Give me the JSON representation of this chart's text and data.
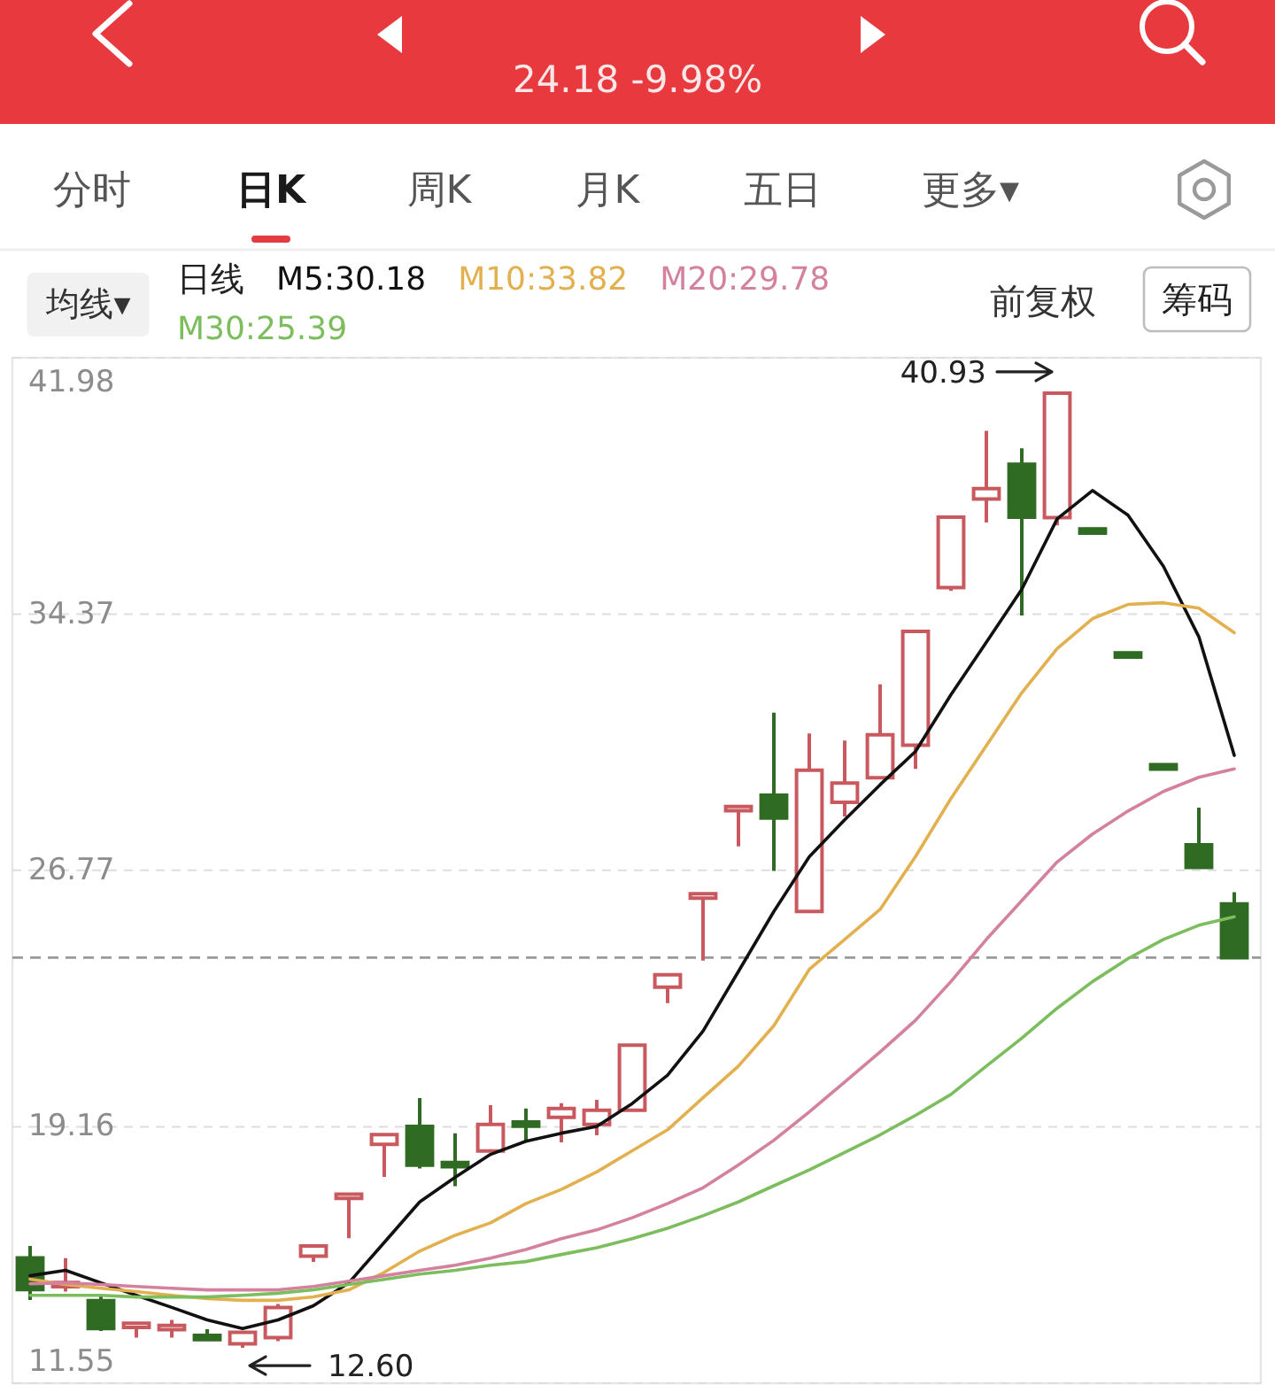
{
  "chart_data": {
    "type": "candlestick",
    "subtitle": "24.18 -9.98%",
    "legend_title": "日线",
    "legend": "top left",
    "grid": "y",
    "categories": [
      null,
      null,
      null,
      null,
      null,
      null,
      null,
      null,
      null,
      null,
      null,
      null,
      null,
      null,
      null,
      null,
      null,
      null,
      null,
      null,
      null,
      null,
      null,
      null,
      null,
      null,
      null,
      null,
      null,
      null,
      null,
      null,
      null,
      null,
      null
    ],
    "ohlc": [
      [
        15.27,
        15.62,
        14.02,
        14.33
      ],
      [
        14.45,
        15.26,
        14.27,
        14.5
      ],
      [
        14.0,
        14.16,
        13.1,
        13.17
      ],
      [
        13.22,
        13.32,
        12.9,
        13.32
      ],
      [
        13.18,
        13.43,
        12.9,
        13.22
      ],
      [
        12.92,
        13.15,
        12.89,
        12.89
      ],
      [
        12.72,
        13.1,
        12.6,
        13.06
      ],
      [
        12.9,
        13.9,
        12.8,
        13.8
      ],
      [
        15.32,
        15.62,
        15.15,
        15.62
      ],
      [
        17.05,
        17.15,
        15.85,
        17.15
      ],
      [
        18.64,
        18.93,
        17.67,
        18.93
      ],
      [
        19.17,
        20.01,
        17.92,
        18.02
      ],
      [
        18.05,
        18.97,
        17.4,
        18.02
      ],
      [
        18.44,
        19.8,
        18.4,
        19.23
      ],
      [
        19.26,
        19.7,
        18.7,
        19.22
      ],
      [
        19.44,
        19.86,
        18.7,
        19.7
      ],
      [
        19.23,
        19.96,
        18.91,
        19.65
      ],
      [
        19.65,
        21.58,
        19.6,
        21.58
      ],
      [
        23.3,
        23.67,
        22.83,
        23.67
      ],
      [
        25.95,
        26.07,
        24.09,
        26.07
      ],
      [
        28.55,
        28.65,
        27.48,
        28.65
      ],
      [
        29.0,
        31.45,
        26.75,
        28.32
      ],
      [
        25.55,
        30.83,
        25.5,
        29.74
      ],
      [
        28.79,
        30.62,
        28.37,
        29.36
      ],
      [
        29.52,
        32.29,
        29.5,
        30.79
      ],
      [
        30.48,
        33.86,
        29.78,
        33.86
      ],
      [
        35.16,
        37.25,
        35.06,
        37.25
      ],
      [
        37.79,
        39.81,
        37.09,
        38.1
      ],
      [
        38.82,
        39.29,
        34.33,
        37.25
      ],
      [
        37.24,
        40.93,
        37.01,
        40.93
      ],
      [
        36.84,
        36.84,
        36.84,
        36.84
      ],
      [
        33.16,
        33.16,
        33.16,
        33.16
      ],
      [
        29.84,
        29.84,
        29.84,
        29.84
      ],
      [
        27.53,
        28.63,
        26.86,
        26.86
      ],
      [
        25.77,
        26.12,
        24.18,
        24.18
      ]
    ],
    "colors": [
      "#2f6b22",
      "#c85a5f",
      "#2f6b22",
      "#c85a5f",
      "#c85a5f",
      "#2f6b22",
      "#c85a5f",
      "#c85a5f",
      "#c85a5f",
      "#c85a5f",
      "#c85a5f",
      "#2f6b22",
      "#2f6b22",
      "#c85a5f",
      "#2f6b22",
      "#c85a5f",
      "#c85a5f",
      "#c85a5f",
      "#c85a5f",
      "#c85a5f",
      "#c85a5f",
      "#2f6b22",
      "#c85a5f",
      "#c85a5f",
      "#c85a5f",
      "#c85a5f",
      "#c85a5f",
      "#c85a5f",
      "#2f6b22",
      "#c85a5f",
      "#2f6b22",
      "#2f6b22",
      "#2f6b22",
      "#2f6b22",
      "#2f6b22"
    ],
    "series": [
      {
        "name": "M5:30.18",
        "type": "line",
        "color": "#111111",
        "values": [
          14.74,
          14.9,
          14.53,
          14.16,
          13.8,
          13.43,
          13.17,
          13.43,
          13.85,
          14.53,
          15.73,
          16.93,
          17.66,
          18.34,
          18.73,
          18.97,
          19.17,
          19.85,
          20.69,
          22.0,
          23.77,
          25.55,
          27.17,
          28.27,
          29.31,
          30.3,
          31.98,
          33.54,
          35.11,
          37.2,
          38.04,
          37.31,
          35.79,
          33.7,
          30.18
        ]
      },
      {
        "name": "M10:33.82",
        "type": "line",
        "color": "#e2b04e",
        "values": [
          14.64,
          14.48,
          14.37,
          14.27,
          14.16,
          14.06,
          14.01,
          14.01,
          14.11,
          14.32,
          14.84,
          15.47,
          15.94,
          16.31,
          16.88,
          17.3,
          17.82,
          18.45,
          19.07,
          20.02,
          20.96,
          22.16,
          23.83,
          24.72,
          25.61,
          27.18,
          28.9,
          30.47,
          32.04,
          33.35,
          34.24,
          34.66,
          34.71,
          34.55,
          33.82
        ]
      },
      {
        "name": "M20:29.78",
        "type": "line",
        "color": "#d4809f",
        "values": [
          14.5,
          14.53,
          14.48,
          14.42,
          14.37,
          14.32,
          14.32,
          14.32,
          14.42,
          14.58,
          14.74,
          14.9,
          15.05,
          15.26,
          15.52,
          15.84,
          16.1,
          16.46,
          16.88,
          17.35,
          18.03,
          18.76,
          19.6,
          20.49,
          21.38,
          22.32,
          23.47,
          24.72,
          25.87,
          27.02,
          27.85,
          28.53,
          29.11,
          29.53,
          29.78
        ]
      },
      {
        "name": "M30:25.39",
        "type": "line",
        "color": "#7cbd5e",
        "values": [
          14.16,
          14.16,
          14.16,
          14.11,
          14.11,
          14.11,
          14.16,
          14.22,
          14.32,
          14.48,
          14.63,
          14.79,
          14.9,
          15.05,
          15.16,
          15.37,
          15.57,
          15.84,
          16.15,
          16.52,
          16.93,
          17.41,
          17.88,
          18.4,
          18.92,
          19.5,
          20.12,
          20.96,
          21.79,
          22.68,
          23.47,
          24.15,
          24.72,
          25.14,
          25.39
        ]
      }
    ],
    "ylim": [
      11.55,
      41.98
    ],
    "yticks": [
      11.55,
      19.16,
      26.77,
      34.37,
      41.98
    ],
    "ref_lines": [
      {
        "axis": "y",
        "value": 24.18,
        "color": "#999999",
        "line_style": "dashed"
      }
    ],
    "annotations": [
      "40.93",
      "12.60",
      "分时",
      "日K",
      "周K",
      "月K",
      "五日",
      "更多▾",
      "均线▾",
      "前复权",
      "筹码"
    ]
  }
}
